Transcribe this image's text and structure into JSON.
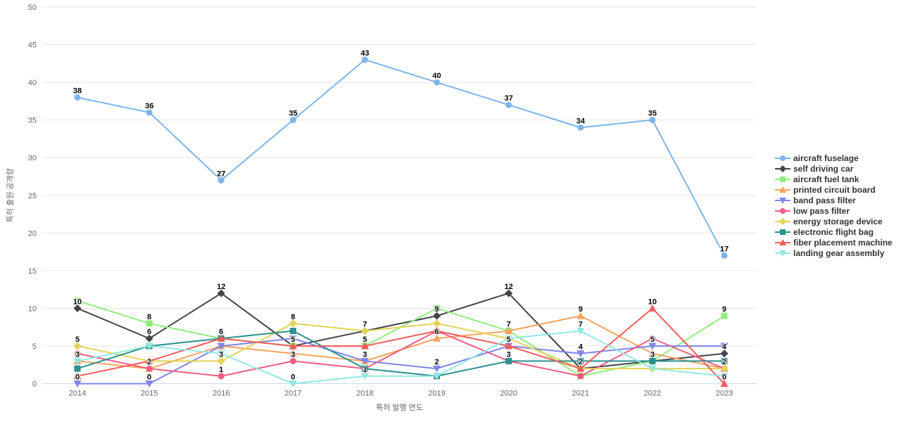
{
  "chart_data": {
    "type": "line",
    "title": "",
    "xlabel": "특허 발행 연도",
    "ylabel": "특허 출원 공개량",
    "categories": [
      "2014",
      "2015",
      "2016",
      "2017",
      "2018",
      "2019",
      "2020",
      "2021",
      "2022",
      "2023"
    ],
    "ylim": [
      0,
      50
    ],
    "y_ticks": [
      0,
      5,
      10,
      15,
      20,
      25,
      30,
      35,
      40,
      45,
      50
    ],
    "grid": true,
    "legend_position": "right",
    "data_labels": true,
    "series": [
      {
        "name": "aircraft fuselage",
        "color": "#7cb5ec",
        "symbol": "circle",
        "values": [
          38,
          36,
          27,
          35,
          43,
          40,
          37,
          34,
          35,
          17
        ]
      },
      {
        "name": "self driving car",
        "color": "#434348",
        "symbol": "diamond",
        "values": [
          10,
          6,
          12,
          5,
          7,
          9,
          12,
          2,
          3,
          4
        ]
      },
      {
        "name": "aircraft fuel tank",
        "color": "#90ed7d",
        "symbol": "square",
        "values": [
          11,
          8,
          6,
          5,
          5,
          10,
          7,
          1,
          3,
          9
        ]
      },
      {
        "name": "printed circuit board",
        "color": "#f7a35c",
        "symbol": "triangle",
        "values": [
          3,
          2,
          5,
          4,
          3,
          6,
          7,
          9,
          4,
          2
        ]
      },
      {
        "name": "band pass filter",
        "color": "#8085e9",
        "symbol": "triangle-down",
        "values": [
          0,
          0,
          5,
          6,
          3,
          2,
          5,
          4,
          5,
          5
        ]
      },
      {
        "name": "low pass filter",
        "color": "#f15c80",
        "symbol": "circle",
        "values": [
          4,
          2,
          1,
          3,
          2,
          7,
          3,
          1,
          6,
          2
        ]
      },
      {
        "name": "energy storage device",
        "color": "#e4d354",
        "symbol": "diamond",
        "values": [
          5,
          3,
          3,
          8,
          7,
          8,
          6,
          2,
          2,
          2
        ]
      },
      {
        "name": "electronic flight bag",
        "color": "#2b908f",
        "symbol": "square",
        "values": [
          2,
          5,
          6,
          7,
          2,
          1,
          3,
          3,
          3,
          3
        ]
      },
      {
        "name": "fiber placement machine",
        "color": "#f45b5b",
        "symbol": "triangle",
        "values": [
          1,
          3,
          6,
          5,
          5,
          7,
          5,
          2,
          10,
          0
        ]
      },
      {
        "name": "landing gear assembly",
        "color": "#91e8e1",
        "symbol": "triangle-down",
        "values": [
          3,
          5,
          4,
          0,
          1,
          1,
          6,
          7,
          2,
          1
        ]
      }
    ],
    "axis_colors": {
      "grid_line": "#e6e6e6",
      "axis_line": "#ccd6eb",
      "tick_text": "#666666"
    }
  }
}
